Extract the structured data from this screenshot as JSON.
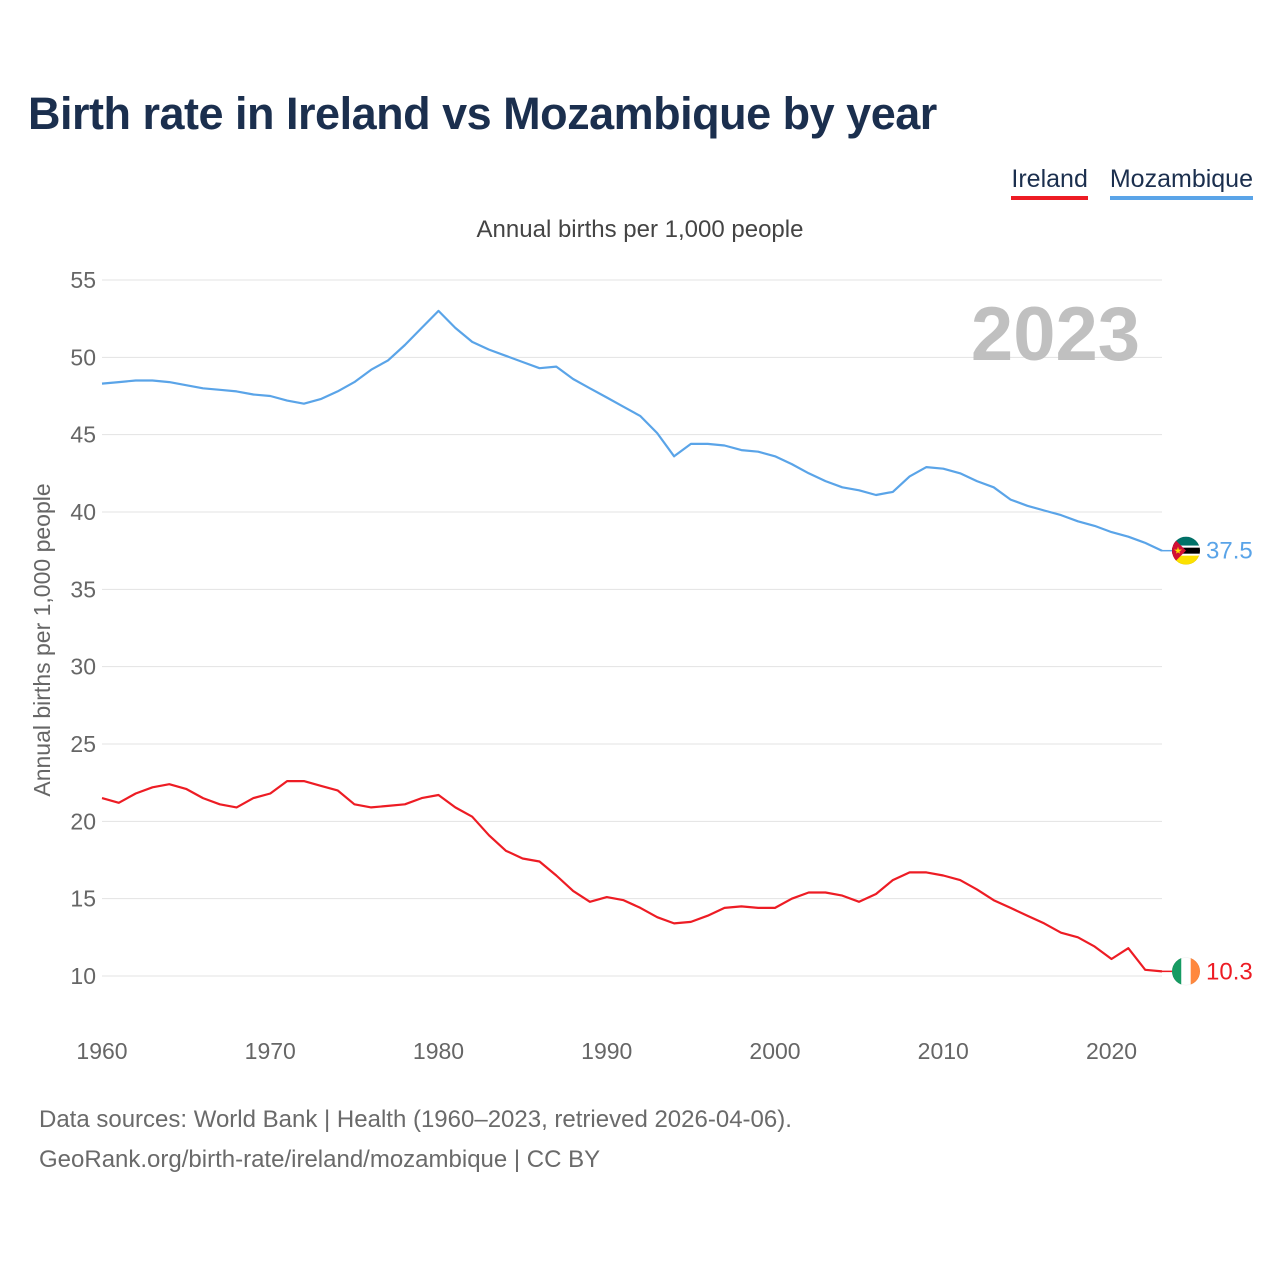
{
  "header": {
    "title": "Birth rate in Ireland vs Mozambique by year"
  },
  "legend": [
    {
      "label": "Ireland",
      "color": "#ed1c24"
    },
    {
      "label": "Mozambique",
      "color": "#5aa4e8"
    }
  ],
  "footer": {
    "sources": "Data sources: World Bank | Health (1960–2023, retrieved 2026-04-06).",
    "credit": "GeoRank.org/birth-rate/ireland/mozambique | CC BY"
  },
  "chart_data": {
    "type": "line",
    "title": "Birth rate in Ireland vs Mozambique by year",
    "subtitle": "Annual births per 1,000 people",
    "xlabel": "",
    "ylabel": "Annual births per 1,000 people",
    "year_label": "2023",
    "xlim": [
      1960,
      2023
    ],
    "ylim": [
      10,
      55
    ],
    "x_ticks": [
      1960,
      1970,
      1980,
      1990,
      2000,
      2010,
      2020
    ],
    "y_ticks": [
      10,
      15,
      20,
      25,
      30,
      35,
      40,
      45,
      50,
      55
    ],
    "grid": true,
    "legend_position": "top-right",
    "x": [
      1960,
      1961,
      1962,
      1963,
      1964,
      1965,
      1966,
      1967,
      1968,
      1969,
      1970,
      1971,
      1972,
      1973,
      1974,
      1975,
      1976,
      1977,
      1978,
      1979,
      1980,
      1981,
      1982,
      1983,
      1984,
      1985,
      1986,
      1987,
      1988,
      1989,
      1990,
      1991,
      1992,
      1993,
      1994,
      1995,
      1996,
      1997,
      1998,
      1999,
      2000,
      2001,
      2002,
      2003,
      2004,
      2005,
      2006,
      2007,
      2008,
      2009,
      2010,
      2011,
      2012,
      2013,
      2014,
      2015,
      2016,
      2017,
      2018,
      2019,
      2020,
      2021,
      2022,
      2023
    ],
    "series": [
      {
        "name": "Ireland",
        "color": "#ed1c24",
        "end_label": "10.3",
        "flag": "ireland-flag",
        "values": [
          21.5,
          21.2,
          21.8,
          22.2,
          22.4,
          22.1,
          21.5,
          21.1,
          20.9,
          21.5,
          21.8,
          22.6,
          22.6,
          22.3,
          22.0,
          21.1,
          20.9,
          21.0,
          21.1,
          21.5,
          21.7,
          20.9,
          20.3,
          19.1,
          18.1,
          17.6,
          17.4,
          16.5,
          15.5,
          14.8,
          15.1,
          14.9,
          14.4,
          13.8,
          13.4,
          13.5,
          13.9,
          14.4,
          14.5,
          14.4,
          14.4,
          15.0,
          15.4,
          15.4,
          15.2,
          14.8,
          15.3,
          16.2,
          16.7,
          16.7,
          16.5,
          16.2,
          15.6,
          14.9,
          14.4,
          13.9,
          13.4,
          12.8,
          12.5,
          11.9,
          11.1,
          11.8,
          10.4,
          10.3
        ]
      },
      {
        "name": "Mozambique",
        "color": "#5aa4e8",
        "end_label": "37.5",
        "flag": "mozambique-flag",
        "values": [
          48.3,
          48.4,
          48.5,
          48.5,
          48.4,
          48.2,
          48.0,
          47.9,
          47.8,
          47.6,
          47.5,
          47.2,
          47.0,
          47.3,
          47.8,
          48.4,
          49.2,
          49.8,
          50.8,
          51.9,
          53.0,
          51.9,
          51.0,
          50.5,
          50.1,
          49.7,
          49.3,
          49.4,
          48.6,
          48.0,
          47.4,
          46.8,
          46.2,
          45.1,
          43.6,
          44.4,
          44.4,
          44.3,
          44.0,
          43.9,
          43.6,
          43.1,
          42.5,
          42.0,
          41.6,
          41.4,
          41.1,
          41.3,
          42.3,
          42.9,
          42.8,
          42.5,
          42.0,
          41.6,
          40.8,
          40.4,
          40.1,
          39.8,
          39.4,
          39.1,
          38.7,
          38.4,
          38.0,
          37.5
        ]
      }
    ]
  }
}
